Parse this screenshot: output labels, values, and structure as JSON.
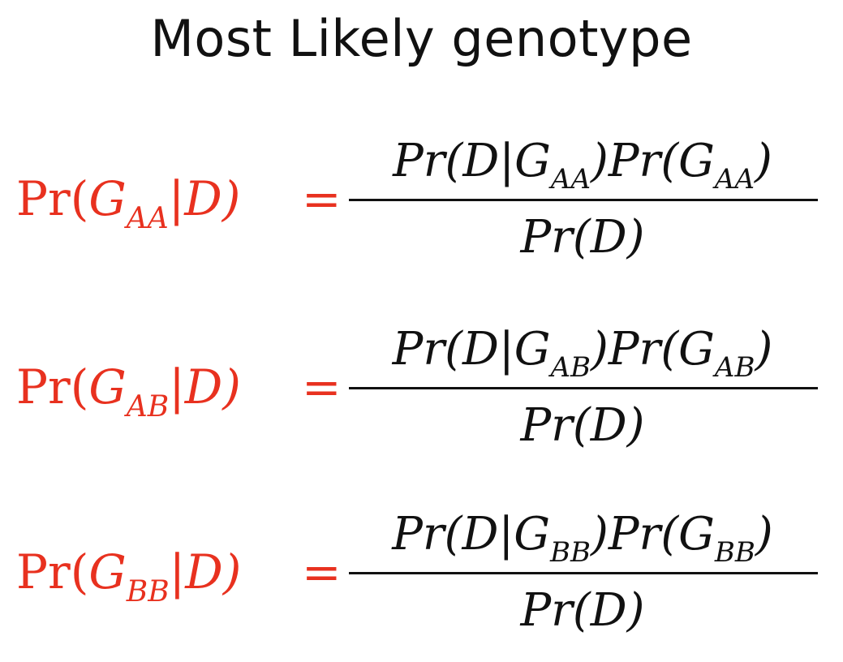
{
  "title": "Most Likely genotype",
  "colors": {
    "lhs": "#e8311f",
    "text": "#111111",
    "background": "#ffffff"
  },
  "equations": [
    {
      "lhs_prefix": "Pr(",
      "lhs_G": "G",
      "lhs_sub": "AA",
      "lhs_suffix": "|D)",
      "equals": "=",
      "numerator_a": "Pr(D|G",
      "numerator_sub1": "AA",
      "numerator_b": ")Pr(G",
      "numerator_sub2": "AA",
      "numerator_c": ")",
      "denominator": "Pr(D)"
    },
    {
      "lhs_prefix": "Pr(",
      "lhs_G": "G",
      "lhs_sub": "AB",
      "lhs_suffix": "|D)",
      "equals": "=",
      "numerator_a": "Pr(D|G",
      "numerator_sub1": "AB",
      "numerator_b": ")Pr(G",
      "numerator_sub2": "AB",
      "numerator_c": ")",
      "denominator": "Pr(D)"
    },
    {
      "lhs_prefix": "Pr(",
      "lhs_G": "G",
      "lhs_sub": "BB",
      "lhs_suffix": "|D)",
      "equals": "=",
      "numerator_a": "Pr(D|G",
      "numerator_sub1": "BB",
      "numerator_b": ")Pr(G",
      "numerator_sub2": "BB",
      "numerator_c": ")",
      "denominator": "Pr(D)"
    }
  ]
}
